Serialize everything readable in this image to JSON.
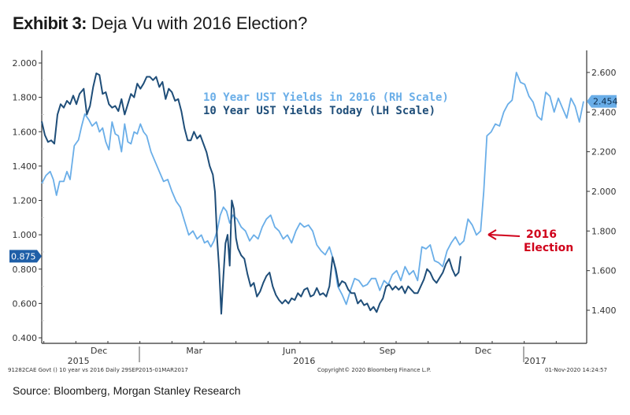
{
  "title": {
    "bold": "Exhibit 3:",
    "rest": "Deja Vu with 2016 Election?"
  },
  "source": "Source: Bloomberg, Morgan Stanley Research",
  "footer": {
    "left": "91282CAE Govt () 10 year vs 2016  Daily 29SEP2015-01MAR2017",
    "center": "Copyright© 2020 Bloomberg Finance L.P.",
    "right": "01-Nov-2020 14:24:57"
  },
  "colors": {
    "today": "#1f4e79",
    "y2016": "#6aaee8",
    "annotation": "#d0021b",
    "axis": "#333333"
  },
  "chart_data": {
    "type": "line",
    "title": "Exhibit 3: Deja Vu with 2016 Election?",
    "xlabel": "",
    "x_range": [
      "29SEP2015",
      "01MAR2017"
    ],
    "x_ticks": [
      {
        "label": "Dec",
        "day": 63
      },
      {
        "label": "Mar",
        "day": 154
      },
      {
        "label": "Jun",
        "day": 246
      },
      {
        "label": "Sep",
        "day": 338
      },
      {
        "label": "Dec",
        "day": 429
      }
    ],
    "year_labels": [
      {
        "label": "2015",
        "day": 35
      },
      {
        "label": "2016",
        "day": 250
      },
      {
        "label": "2017",
        "day": 470
      }
    ],
    "year_dividers": [
      93,
      459
    ],
    "left_axis": {
      "label": "LH Scale",
      "ylim": [
        0.4,
        2.0
      ],
      "ticks": [
        "2.000",
        "1.800",
        "1.600",
        "1.400",
        "1.200",
        "1.000",
        "0.800",
        "0.600",
        "0.400"
      ],
      "last_value_label": "0.875"
    },
    "right_axis": {
      "label": "RH Scale",
      "ylim": [
        1.3,
        2.65
      ],
      "ticks": [
        "2.600",
        "2.400",
        "2.200",
        "2.000",
        "1.800",
        "1.600",
        "1.400"
      ],
      "last_value_label": "2.454"
    },
    "series": [
      {
        "name": "10 Year UST Yields in 2016 (RH Scale)",
        "axis": "right",
        "color": "#6aaee8",
        "points": [
          [
            0,
            2.04
          ],
          [
            4,
            2.08
          ],
          [
            8,
            2.1
          ],
          [
            11,
            2.06
          ],
          [
            14,
            1.98
          ],
          [
            17,
            2.05
          ],
          [
            21,
            2.05
          ],
          [
            24,
            2.1
          ],
          [
            27,
            2.06
          ],
          [
            31,
            2.23
          ],
          [
            35,
            2.26
          ],
          [
            38,
            2.33
          ],
          [
            41,
            2.39
          ],
          [
            45,
            2.36
          ],
          [
            48,
            2.33
          ],
          [
            52,
            2.35
          ],
          [
            55,
            2.3
          ],
          [
            58,
            2.32
          ],
          [
            61,
            2.25
          ],
          [
            64,
            2.21
          ],
          [
            67,
            2.35
          ],
          [
            70,
            2.29
          ],
          [
            73,
            2.28
          ],
          [
            76,
            2.2
          ],
          [
            79,
            2.34
          ],
          [
            82,
            2.25
          ],
          [
            85,
            2.24
          ],
          [
            88,
            2.3
          ],
          [
            91,
            2.29
          ],
          [
            94,
            2.34
          ],
          [
            97,
            2.3
          ],
          [
            100,
            2.28
          ],
          [
            104,
            2.2
          ],
          [
            108,
            2.15
          ],
          [
            112,
            2.1
          ],
          [
            116,
            2.05
          ],
          [
            120,
            2.06
          ],
          [
            124,
            2.0
          ],
          [
            128,
            1.95
          ],
          [
            132,
            1.92
          ],
          [
            136,
            1.85
          ],
          [
            140,
            1.78
          ],
          [
            144,
            1.8
          ],
          [
            148,
            1.76
          ],
          [
            152,
            1.78
          ],
          [
            155,
            1.74
          ],
          [
            158,
            1.75
          ],
          [
            161,
            1.72
          ],
          [
            164,
            1.75
          ],
          [
            167,
            1.8
          ],
          [
            170,
            1.88
          ],
          [
            173,
            1.92
          ],
          [
            176,
            1.9
          ],
          [
            179,
            1.84
          ],
          [
            182,
            1.88
          ],
          [
            186,
            1.86
          ],
          [
            190,
            1.82
          ],
          [
            194,
            1.8
          ],
          [
            198,
            1.75
          ],
          [
            202,
            1.78
          ],
          [
            206,
            1.76
          ],
          [
            210,
            1.82
          ],
          [
            214,
            1.86
          ],
          [
            218,
            1.88
          ],
          [
            222,
            1.82
          ],
          [
            226,
            1.8
          ],
          [
            230,
            1.76
          ],
          [
            234,
            1.78
          ],
          [
            238,
            1.74
          ],
          [
            242,
            1.8
          ],
          [
            246,
            1.84
          ],
          [
            250,
            1.82
          ],
          [
            254,
            1.83
          ],
          [
            258,
            1.8
          ],
          [
            262,
            1.73
          ],
          [
            266,
            1.7
          ],
          [
            270,
            1.68
          ],
          [
            274,
            1.72
          ],
          [
            278,
            1.65
          ],
          [
            282,
            1.52
          ],
          [
            286,
            1.48
          ],
          [
            290,
            1.43
          ],
          [
            294,
            1.5
          ],
          [
            298,
            1.56
          ],
          [
            302,
            1.55
          ],
          [
            306,
            1.52
          ],
          [
            310,
            1.53
          ],
          [
            314,
            1.56
          ],
          [
            318,
            1.56
          ],
          [
            322,
            1.5
          ],
          [
            326,
            1.55
          ],
          [
            330,
            1.53
          ],
          [
            334,
            1.58
          ],
          [
            338,
            1.6
          ],
          [
            342,
            1.55
          ],
          [
            346,
            1.62
          ],
          [
            350,
            1.58
          ],
          [
            354,
            1.6
          ],
          [
            358,
            1.55
          ],
          [
            362,
            1.72
          ],
          [
            366,
            1.71
          ],
          [
            370,
            1.73
          ],
          [
            374,
            1.65
          ],
          [
            378,
            1.64
          ],
          [
            382,
            1.62
          ],
          [
            386,
            1.7
          ],
          [
            390,
            1.74
          ],
          [
            394,
            1.77
          ],
          [
            398,
            1.73
          ],
          [
            402,
            1.75
          ],
          [
            406,
            1.86
          ],
          [
            410,
            1.83
          ],
          [
            414,
            1.78
          ],
          [
            418,
            1.8
          ],
          [
            421,
            2.0
          ],
          [
            424,
            2.28
          ],
          [
            428,
            2.3
          ],
          [
            432,
            2.34
          ],
          [
            436,
            2.33
          ],
          [
            440,
            2.4
          ],
          [
            444,
            2.44
          ],
          [
            448,
            2.46
          ],
          [
            452,
            2.6
          ],
          [
            456,
            2.55
          ],
          [
            460,
            2.54
          ],
          [
            464,
            2.48
          ],
          [
            468,
            2.45
          ],
          [
            472,
            2.38
          ],
          [
            476,
            2.36
          ],
          [
            480,
            2.5
          ],
          [
            484,
            2.48
          ],
          [
            488,
            2.4
          ],
          [
            492,
            2.47
          ],
          [
            496,
            2.42
          ],
          [
            500,
            2.37
          ],
          [
            504,
            2.47
          ],
          [
            508,
            2.43
          ],
          [
            512,
            2.35
          ],
          [
            516,
            2.454
          ]
        ]
      },
      {
        "name": "10 Year UST Yields Today (LH Scale)",
        "axis": "left",
        "color": "#1f4e79",
        "points": [
          [
            0,
            1.66
          ],
          [
            3,
            1.58
          ],
          [
            6,
            1.54
          ],
          [
            9,
            1.55
          ],
          [
            12,
            1.53
          ],
          [
            15,
            1.7
          ],
          [
            18,
            1.76
          ],
          [
            21,
            1.74
          ],
          [
            24,
            1.78
          ],
          [
            27,
            1.76
          ],
          [
            30,
            1.81
          ],
          [
            33,
            1.76
          ],
          [
            36,
            1.82
          ],
          [
            40,
            1.85
          ],
          [
            43,
            1.7
          ],
          [
            46,
            1.75
          ],
          [
            49,
            1.86
          ],
          [
            52,
            1.94
          ],
          [
            55,
            1.93
          ],
          [
            58,
            1.82
          ],
          [
            61,
            1.83
          ],
          [
            64,
            1.76
          ],
          [
            67,
            1.74
          ],
          [
            70,
            1.75
          ],
          [
            73,
            1.72
          ],
          [
            76,
            1.79
          ],
          [
            79,
            1.7
          ],
          [
            82,
            1.76
          ],
          [
            85,
            1.82
          ],
          [
            88,
            1.8
          ],
          [
            91,
            1.88
          ],
          [
            94,
            1.85
          ],
          [
            97,
            1.88
          ],
          [
            100,
            1.92
          ],
          [
            103,
            1.92
          ],
          [
            106,
            1.9
          ],
          [
            109,
            1.92
          ],
          [
            112,
            1.86
          ],
          [
            115,
            1.89
          ],
          [
            118,
            1.79
          ],
          [
            121,
            1.85
          ],
          [
            124,
            1.83
          ],
          [
            127,
            1.78
          ],
          [
            130,
            1.79
          ],
          [
            133,
            1.72
          ],
          [
            136,
            1.62
          ],
          [
            139,
            1.55
          ],
          [
            142,
            1.55
          ],
          [
            145,
            1.6
          ],
          [
            148,
            1.56
          ],
          [
            151,
            1.58
          ],
          [
            154,
            1.53
          ],
          [
            157,
            1.48
          ],
          [
            160,
            1.4
          ],
          [
            163,
            1.35
          ],
          [
            165,
            1.25
          ],
          [
            167,
            0.98
          ],
          [
            169,
            0.8
          ],
          [
            171,
            0.54
          ],
          [
            173,
            0.76
          ],
          [
            175,
            0.95
          ],
          [
            177,
            1.0
          ],
          [
            179,
            0.82
          ],
          [
            181,
            1.2
          ],
          [
            183,
            1.15
          ],
          [
            185,
            0.98
          ],
          [
            187,
            0.92
          ],
          [
            190,
            0.88
          ],
          [
            193,
            0.86
          ],
          [
            196,
            0.77
          ],
          [
            199,
            0.7
          ],
          [
            202,
            0.72
          ],
          [
            205,
            0.64
          ],
          [
            208,
            0.67
          ],
          [
            211,
            0.72
          ],
          [
            214,
            0.76
          ],
          [
            217,
            0.78
          ],
          [
            220,
            0.7
          ],
          [
            223,
            0.65
          ],
          [
            226,
            0.62
          ],
          [
            229,
            0.6
          ],
          [
            232,
            0.62
          ],
          [
            235,
            0.6
          ],
          [
            238,
            0.63
          ],
          [
            241,
            0.62
          ],
          [
            244,
            0.66
          ],
          [
            247,
            0.64
          ],
          [
            250,
            0.68
          ],
          [
            253,
            0.69
          ],
          [
            256,
            0.64
          ],
          [
            259,
            0.65
          ],
          [
            262,
            0.69
          ],
          [
            265,
            0.65
          ],
          [
            268,
            0.66
          ],
          [
            271,
            0.64
          ],
          [
            274,
            0.7
          ],
          [
            277,
            0.87
          ],
          [
            280,
            0.8
          ],
          [
            283,
            0.7
          ],
          [
            286,
            0.73
          ],
          [
            289,
            0.72
          ],
          [
            292,
            0.68
          ],
          [
            295,
            0.66
          ],
          [
            298,
            0.66
          ],
          [
            301,
            0.6
          ],
          [
            304,
            0.62
          ],
          [
            307,
            0.59
          ],
          [
            310,
            0.6
          ],
          [
            313,
            0.56
          ],
          [
            316,
            0.58
          ],
          [
            319,
            0.55
          ],
          [
            322,
            0.6
          ],
          [
            325,
            0.63
          ],
          [
            328,
            0.7
          ],
          [
            331,
            0.71
          ],
          [
            334,
            0.68
          ],
          [
            337,
            0.7
          ],
          [
            340,
            0.68
          ],
          [
            343,
            0.7
          ],
          [
            346,
            0.66
          ],
          [
            349,
            0.7
          ],
          [
            352,
            0.68
          ],
          [
            355,
            0.66
          ],
          [
            358,
            0.66
          ],
          [
            361,
            0.7
          ],
          [
            364,
            0.74
          ],
          [
            367,
            0.8
          ],
          [
            370,
            0.78
          ],
          [
            373,
            0.74
          ],
          [
            376,
            0.72
          ],
          [
            379,
            0.75
          ],
          [
            382,
            0.78
          ],
          [
            385,
            0.83
          ],
          [
            388,
            0.86
          ],
          [
            391,
            0.8
          ],
          [
            394,
            0.76
          ],
          [
            397,
            0.78
          ],
          [
            399,
            0.875
          ]
        ]
      }
    ],
    "legend": {
      "position": "top-center",
      "entries": [
        {
          "label": "10 Year UST Yields in 2016 (RH Scale)",
          "color": "#6aaee8"
        },
        {
          "label": "10 Year UST Yields Today (LH Scale)",
          "color": "#1f4e79"
        }
      ]
    },
    "annotations": [
      {
        "text_line1": "2016",
        "text_line2": "Election",
        "points_to_day": 418,
        "color": "#d0021b"
      }
    ],
    "grid": false
  }
}
